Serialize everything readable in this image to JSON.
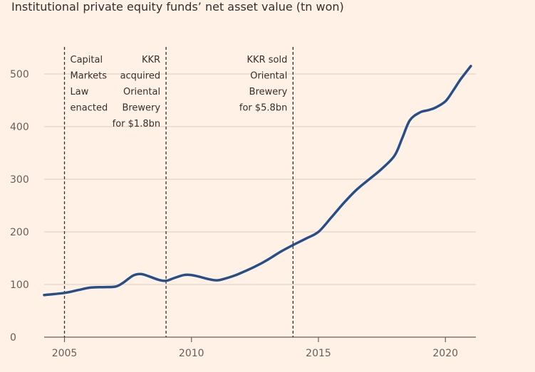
{
  "chart_data": {
    "type": "line",
    "title": "Institutional private equity funds’ net asset value (tn won)",
    "xlabel": "",
    "ylabel": "",
    "xlim": [
      2004.2,
      2021.2
    ],
    "ylim": [
      0,
      500
    ],
    "y_ticks": [
      "0",
      "100",
      "200",
      "300",
      "400",
      "500"
    ],
    "x_ticks": [
      "2005",
      "2010",
      "2015",
      "2020"
    ],
    "grid": "horizontal",
    "series": [
      {
        "color": "#264f8a",
        "x": [
          2004.2,
          2005.0,
          2005.5,
          2006.0,
          2006.5,
          2007.0,
          2007.3,
          2007.7,
          2008.0,
          2008.3,
          2008.7,
          2009.0,
          2009.3,
          2009.7,
          2010.0,
          2010.3,
          2010.7,
          2011.0,
          2011.3,
          2011.7,
          2012.0,
          2012.5,
          2013.0,
          2013.5,
          2014.0,
          2014.5,
          2015.0,
          2015.5,
          2016.0,
          2016.5,
          2017.0,
          2017.5,
          2018.0,
          2018.3,
          2018.6,
          2019.0,
          2019.3,
          2019.6,
          2020.0,
          2020.3,
          2020.6,
          2021.0
        ],
        "values": [
          80,
          84,
          89,
          94,
          95,
          96,
          103,
          117,
          120,
          116,
          109,
          107,
          112,
          118,
          118,
          115,
          110,
          108,
          111,
          117,
          123,
          134,
          147,
          162,
          175,
          187,
          200,
          227,
          255,
          280,
          300,
          320,
          345,
          378,
          412,
          427,
          431,
          436,
          448,
          468,
          490,
          515
        ]
      }
    ],
    "annotations": [
      {
        "x": 2005,
        "lines": [
          "Capital",
          "Markets",
          "Law",
          "enacted"
        ],
        "align": "left"
      },
      {
        "x": 2009,
        "lines": [
          "KKR",
          "acquired",
          "Oriental",
          "Brewery",
          "for $1.8bn"
        ],
        "align": "right"
      },
      {
        "x": 2014,
        "lines": [
          "KKR sold",
          "Oriental",
          "Brewery",
          "for $5.8bn"
        ],
        "align": "right"
      }
    ]
  }
}
